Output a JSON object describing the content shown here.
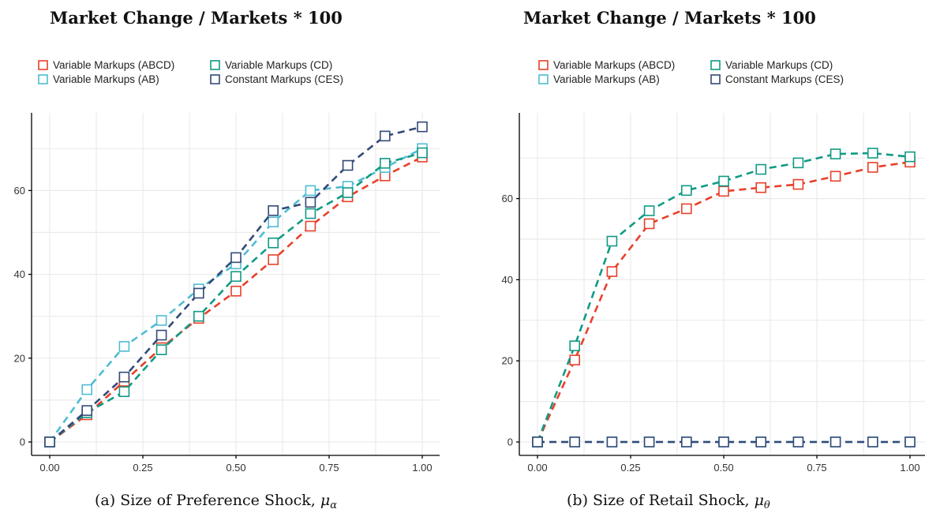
{
  "chart_data": [
    {
      "type": "line",
      "title": "Market Change / Markets * 100",
      "caption": "(a) Size of Preference Shock,",
      "caption_symbol": "μ",
      "caption_subscript": "α",
      "x": [
        0.0,
        0.1,
        0.2,
        0.3,
        0.4,
        0.5,
        0.6,
        0.7,
        0.8,
        0.9,
        1.0
      ],
      "xlim": [
        0,
        1
      ],
      "ylim": [
        0,
        75
      ],
      "xticks": [
        "0.00",
        "0.25",
        "0.50",
        "0.75",
        "1.00"
      ],
      "xtick_values": [
        0,
        0.25,
        0.5,
        0.75,
        1.0
      ],
      "yticks": [
        "0",
        "20",
        "40",
        "60"
      ],
      "ytick_values": [
        0,
        20,
        40,
        60
      ],
      "grid": true,
      "legend": "top-left",
      "series": [
        {
          "name": "Variable Markups (ABCD)",
          "color": "#e8402a",
          "values": [
            0,
            6.5,
            14.5,
            22.5,
            29.5,
            36,
            43.5,
            51.5,
            58.5,
            63.5,
            68
          ]
        },
        {
          "name": "Variable Markups (AB)",
          "color": "#4fbcd3",
          "values": [
            0,
            12.5,
            22.8,
            29,
            36.5,
            42.5,
            52.5,
            60,
            61,
            65.5,
            70
          ]
        },
        {
          "name": "Variable Markups (CD)",
          "color": "#119a85",
          "values": [
            0,
            7,
            12,
            22,
            30,
            39.5,
            47.5,
            54.5,
            59.5,
            66.5,
            69
          ]
        },
        {
          "name": "Constant Markups (CES)",
          "color": "#334a78",
          "values": [
            0,
            7.5,
            15.5,
            25.5,
            35.5,
            44,
            55.2,
            57.2,
            66,
            73,
            75.2
          ]
        }
      ]
    },
    {
      "type": "line",
      "title": "Market Change / Markets * 100",
      "caption": "(b) Size of Retail Shock,",
      "caption_symbol": "μ",
      "caption_subscript": "θ",
      "x": [
        0.0,
        0.1,
        0.2,
        0.3,
        0.4,
        0.5,
        0.6,
        0.7,
        0.8,
        0.9,
        1.0
      ],
      "xlim": [
        0,
        1
      ],
      "ylim": [
        0,
        70
      ],
      "xticks": [
        "0.00",
        "0.25",
        "0.50",
        "0.75",
        "1.00"
      ],
      "xtick_values": [
        0,
        0.25,
        0.5,
        0.75,
        1.0
      ],
      "yticks": [
        "0",
        "20",
        "40",
        "60"
      ],
      "ytick_values": [
        0,
        20,
        40,
        60
      ],
      "grid": true,
      "legend": "top-left",
      "series": [
        {
          "name": "Variable Markups (ABCD)",
          "color": "#e8402a",
          "values": [
            0,
            20.2,
            42,
            53.8,
            57.5,
            61.8,
            62.7,
            63.5,
            65.5,
            67.7,
            69
          ]
        },
        {
          "name": "Variable Markups (AB)",
          "color": "#4fbcd3",
          "values": [
            0,
            0,
            0,
            0,
            0,
            0,
            0,
            0,
            0,
            0,
            0
          ]
        },
        {
          "name": "Variable Markups (CD)",
          "color": "#119a85",
          "values": [
            0,
            23.7,
            49.5,
            57,
            62,
            64.3,
            67.2,
            68.8,
            71,
            71.2,
            70.3
          ]
        },
        {
          "name": "Constant Markups (CES)",
          "color": "#334a78",
          "values": [
            0,
            0,
            0,
            0,
            0,
            0,
            0,
            0,
            0,
            0,
            0
          ]
        }
      ]
    }
  ]
}
